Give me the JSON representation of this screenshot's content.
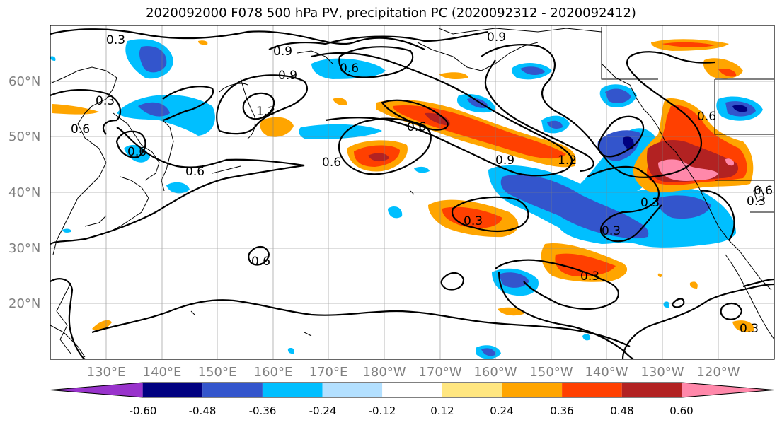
{
  "title": "2020092000 F078 500 hPa PV, precipitation PC (2020092312 - 2020092412)",
  "lon_ticks": [
    "130°E",
    "140°E",
    "150°E",
    "160°E",
    "170°E",
    "180°W",
    "170°W",
    "160°W",
    "150°W",
    "140°W",
    "130°W",
    "120°W"
  ],
  "lat_ticks": [
    "60°N",
    "50°N",
    "40°N",
    "30°N",
    "20°N"
  ],
  "colorbar": {
    "tick_labels": [
      "-0.60",
      "-0.48",
      "-0.36",
      "-0.24",
      "-0.12",
      "0.12",
      "0.24",
      "0.36",
      "0.48",
      "0.60"
    ],
    "colors": [
      "#9933cc",
      "#000080",
      "#3355cc",
      "#00bfff",
      "#b3e0ff",
      "#ffffff",
      "#ffe680",
      "#ffa500",
      "#ff4000",
      "#b22222",
      "#ff88aa"
    ]
  },
  "contour_labels": [
    "0.3",
    "0.9",
    "0.9",
    "0.6",
    "0.9",
    "0.3",
    "0.6",
    "1.2",
    "0.6",
    "0.6",
    "0.6",
    "0.9",
    "1.2",
    "0.6",
    "0.3",
    "0.3",
    "0.3",
    "0.6",
    "0.3",
    "0.6",
    "0.3",
    "0.3",
    "0.6"
  ],
  "chart_data": {
    "type": "map",
    "title": "2020092000 F078 500 hPa PV, precipitation PC (2020092312 - 2020092412)",
    "lon_range": [
      "120°E",
      "110°W"
    ],
    "lat_range": [
      10,
      70
    ],
    "contour_levels_pv": [
      0.3,
      0.6,
      0.9,
      1.2
    ],
    "fill_levels": [
      -0.6,
      -0.48,
      -0.36,
      -0.24,
      -0.12,
      0.12,
      0.24,
      0.36,
      0.48,
      0.6
    ]
  }
}
